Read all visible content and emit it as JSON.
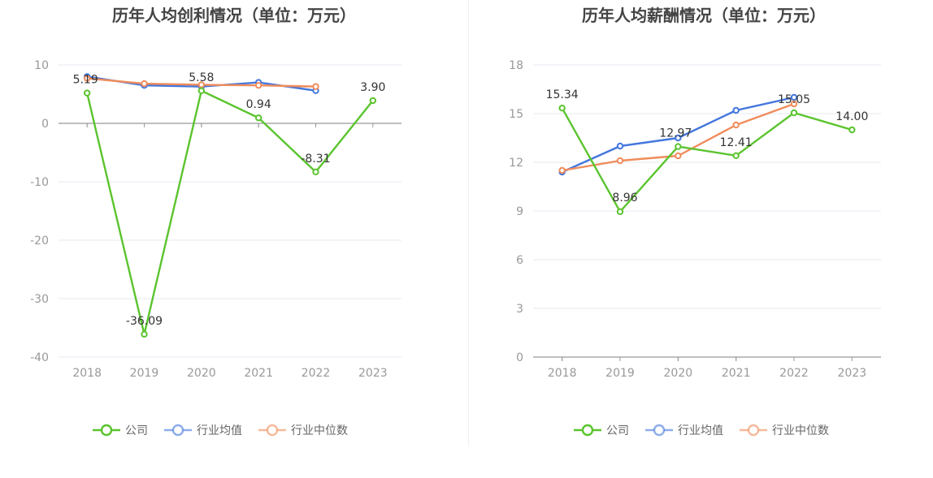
{
  "colors": {
    "company": "#5bc42e",
    "avg": "#4477dd",
    "median": "#f08c5c",
    "grid": "#e6e9f2",
    "axis": "#999999",
    "tick_text": "#999999",
    "label_text": "#333333",
    "title_text": "#444444",
    "legend_text": "#666666"
  },
  "chart_data": [
    {
      "type": "line",
      "title": "历年人均创利情况（单位：万元）",
      "categories": [
        "2018",
        "2019",
        "2020",
        "2021",
        "2022",
        "2023"
      ],
      "ylim": [
        -40,
        10
      ],
      "yticks": [
        "10",
        "0",
        "-10",
        "-20",
        "-30",
        "-40"
      ],
      "grid": true,
      "legend_position": "bottom-center",
      "series": [
        {
          "name": "公司",
          "values": [
            5.19,
            -36.09,
            5.58,
            0.94,
            -8.31,
            3.9
          ],
          "labels": [
            "5.19",
            "-36.09",
            "5.58",
            "0.94",
            "-8.31",
            "3.90"
          ]
        },
        {
          "name": "行业均值",
          "values": [
            8.0,
            6.5,
            6.3,
            7.0,
            5.6,
            null
          ]
        },
        {
          "name": "行业中位数",
          "values": [
            7.7,
            6.8,
            6.6,
            6.5,
            6.3,
            null
          ]
        }
      ]
    },
    {
      "type": "line",
      "title": "历年人均薪酬情况（单位：万元）",
      "categories": [
        "2018",
        "2019",
        "2020",
        "2021",
        "2022",
        "2023"
      ],
      "ylim": [
        0,
        18
      ],
      "yticks": [
        "18",
        "15",
        "12",
        "9",
        "6",
        "3",
        "0"
      ],
      "grid": true,
      "legend_position": "bottom-center",
      "series": [
        {
          "name": "公司",
          "values": [
            15.34,
            8.96,
            12.97,
            12.41,
            15.05,
            14.0
          ],
          "labels": [
            "15.34",
            "8.96",
            "12.97",
            "12.41",
            "15.05",
            "14.00"
          ]
        },
        {
          "name": "行业均值",
          "values": [
            11.4,
            13.0,
            13.5,
            15.2,
            16.0,
            null
          ]
        },
        {
          "name": "行业中位数",
          "values": [
            11.5,
            12.1,
            12.4,
            14.3,
            15.6,
            null
          ]
        }
      ]
    }
  ]
}
